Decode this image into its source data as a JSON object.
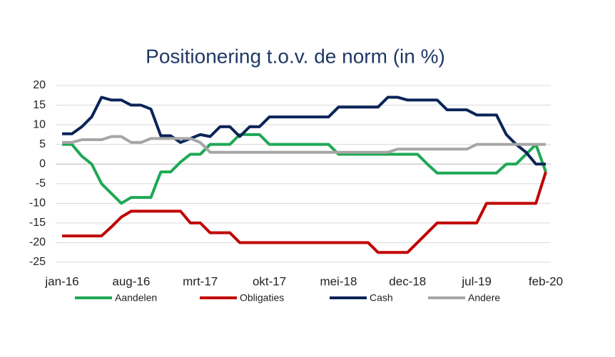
{
  "chart_data": {
    "type": "line",
    "title": "Positionering t.o.v. de norm (in %)",
    "categories": [
      "jan-16",
      null,
      null,
      null,
      null,
      null,
      null,
      "aug-16",
      null,
      null,
      null,
      null,
      null,
      null,
      "mrt-17",
      null,
      null,
      null,
      null,
      null,
      null,
      "okt-17",
      null,
      null,
      null,
      null,
      null,
      null,
      "mei-18",
      null,
      null,
      null,
      null,
      null,
      null,
      "dec-18",
      null,
      null,
      null,
      null,
      null,
      null,
      "jul-19",
      null,
      null,
      null,
      null,
      null,
      null,
      "feb-20"
    ],
    "series": [
      {
        "name": "Aandelen",
        "color": "#1ea855",
        "values": [
          5,
          5,
          2,
          0,
          -5,
          -7.5,
          -10,
          -8.5,
          -8.5,
          -8.5,
          -2,
          -2,
          0.5,
          2.5,
          2.5,
          5,
          5,
          5,
          7.5,
          7.5,
          7.5,
          5,
          5,
          5,
          5,
          5,
          5,
          5,
          2.5,
          2.5,
          2.5,
          2.5,
          2.5,
          2.5,
          2.5,
          2.5,
          2.5,
          0,
          -2.3,
          -2.3,
          -2.3,
          -2.3,
          -2.3,
          -2.3,
          -2.3,
          0,
          0,
          2.5,
          5,
          -2
        ]
      },
      {
        "name": "Obligaties",
        "color": "#c00000",
        "values": [
          -18.3,
          -18.3,
          -18.3,
          -18.3,
          -18.3,
          -16,
          -13.5,
          -12,
          -12,
          -12,
          -12,
          -12,
          -12,
          -15,
          -15,
          -17.5,
          -17.5,
          -17.5,
          -20,
          -20,
          -20,
          -20,
          -20,
          -20,
          -20,
          -20,
          -20,
          -20,
          -20,
          -20,
          -20,
          -20,
          -22.5,
          -22.5,
          -22.5,
          -22.5,
          -20,
          -17.5,
          -15,
          -15,
          -15,
          -15,
          -15,
          -10,
          -10,
          -10,
          -10,
          -10,
          -10,
          -2
        ]
      },
      {
        "name": "Cash",
        "color": "#0b2457",
        "values": [
          7.7,
          7.7,
          9.5,
          12,
          17,
          16.3,
          16.3,
          15,
          15,
          14,
          7.2,
          7.2,
          5.5,
          6.5,
          7.5,
          7,
          9.5,
          9.5,
          7,
          9.5,
          9.5,
          12,
          12,
          12,
          12,
          12,
          12,
          12,
          14.5,
          14.5,
          14.5,
          14.5,
          14.5,
          17,
          17,
          16.3,
          16.3,
          16.3,
          16.3,
          13.8,
          13.8,
          13.8,
          12.5,
          12.5,
          12.5,
          7.5,
          5,
          3,
          0,
          0
        ]
      },
      {
        "name": "Andere",
        "color": "#a6a6a6",
        "values": [
          5.5,
          5.5,
          6.2,
          6.2,
          6.2,
          7,
          7,
          5.5,
          5.5,
          6.5,
          6.5,
          6.5,
          6.5,
          6.5,
          5.5,
          3,
          3,
          3,
          3,
          3,
          3,
          3,
          3,
          3,
          3,
          3,
          3,
          3,
          3,
          3,
          3,
          3,
          3,
          3,
          3.8,
          3.8,
          3.8,
          3.8,
          3.8,
          3.8,
          3.8,
          3.8,
          5,
          5,
          5,
          5,
          5,
          5,
          5,
          5
        ]
      }
    ],
    "ylim": [
      -25,
      20
    ],
    "yticks": [
      -25,
      -20,
      -15,
      -10,
      -5,
      0,
      5,
      10,
      15,
      20
    ],
    "grid": true,
    "legend": "bottom"
  }
}
